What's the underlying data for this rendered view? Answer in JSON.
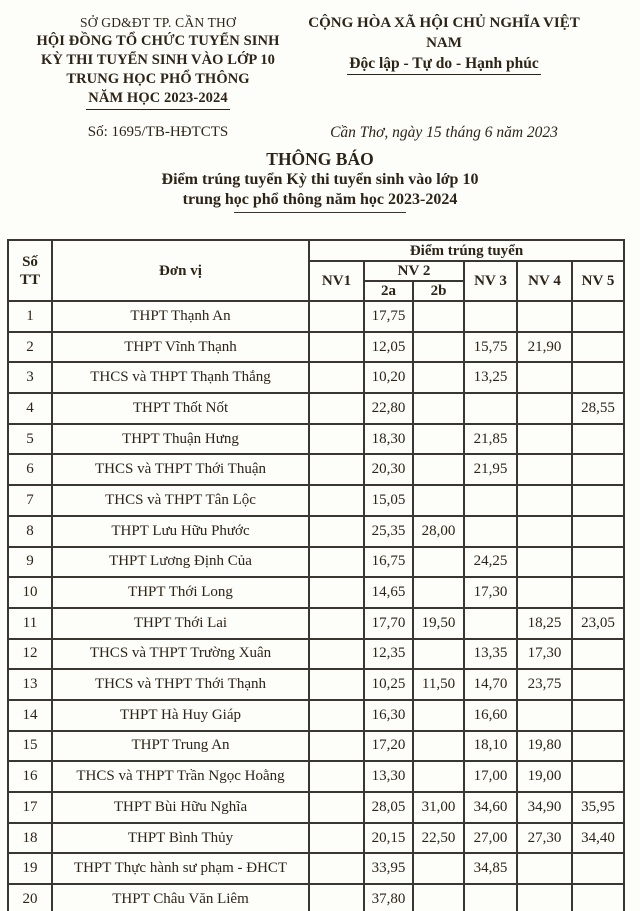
{
  "document": {
    "issuer_block": {
      "agency": "SỞ GD&ĐT TP. CẦN THƠ",
      "council_line1": "HỘI ĐỒNG TỔ CHỨC TUYỂN SINH",
      "council_line2": "KỲ THI TUYỂN SINH VÀO LỚP 10",
      "council_line3": "TRUNG HỌC PHỔ THÔNG",
      "council_line4": "NĂM HỌC 2023-2024"
    },
    "national_block": {
      "motto_line1": "CỘNG HÒA XÃ HỘI CHỦ NGHĨA VIỆT NAM",
      "motto_line2": "Độc lập - Tự do - Hạnh phúc"
    },
    "doc_number": "Số: 1695/TB-HĐTCTS",
    "place_date": "Cần Thơ, ngày 15 tháng 6 năm 2023",
    "title": "THÔNG BÁO",
    "subtitle_line1": "Điểm trúng tuyển Kỳ thi tuyển sinh vào lớp 10",
    "subtitle_line2": "trung học phổ thông năm học 2023-2024"
  },
  "colors": {
    "ink": "#2d2418",
    "table_border": "#3a3733",
    "background": "#fdfdfa"
  },
  "table": {
    "header": {
      "stt_line1": "Số",
      "stt_line2": "TT",
      "unit": "Đơn vị",
      "group_title": "Điểm trúng tuyển",
      "nv1": "NV1",
      "nv2": "NV 2",
      "nv2a": "2a",
      "nv2b": "2b",
      "nv3": "NV 3",
      "nv4": "NV 4",
      "nv5": "NV 5"
    },
    "rows": [
      {
        "stt": "1",
        "unit": "THPT Thạnh An",
        "nv1": "",
        "nv2a": "17,75",
        "nv2b": "",
        "nv3": "",
        "nv4": "",
        "nv5": ""
      },
      {
        "stt": "2",
        "unit": "THPT Vĩnh Thạnh",
        "nv1": "",
        "nv2a": "12,05",
        "nv2b": "",
        "nv3": "15,75",
        "nv4": "21,90",
        "nv5": ""
      },
      {
        "stt": "3",
        "unit": "THCS và THPT Thạnh Thắng",
        "nv1": "",
        "nv2a": "10,20",
        "nv2b": "",
        "nv3": "13,25",
        "nv4": "",
        "nv5": ""
      },
      {
        "stt": "4",
        "unit": "THPT Thốt Nốt",
        "nv1": "",
        "nv2a": "22,80",
        "nv2b": "",
        "nv3": "",
        "nv4": "",
        "nv5": "28,55"
      },
      {
        "stt": "5",
        "unit": "THPT Thuận Hưng",
        "nv1": "",
        "nv2a": "18,30",
        "nv2b": "",
        "nv3": "21,85",
        "nv4": "",
        "nv5": ""
      },
      {
        "stt": "6",
        "unit": "THCS và THPT Thới Thuận",
        "nv1": "",
        "nv2a": "20,30",
        "nv2b": "",
        "nv3": "21,95",
        "nv4": "",
        "nv5": ""
      },
      {
        "stt": "7",
        "unit": "THCS và THPT Tân Lộc",
        "nv1": "",
        "nv2a": "15,05",
        "nv2b": "",
        "nv3": "",
        "nv4": "",
        "nv5": ""
      },
      {
        "stt": "8",
        "unit": "THPT Lưu Hữu Phước",
        "nv1": "",
        "nv2a": "25,35",
        "nv2b": "28,00",
        "nv3": "",
        "nv4": "",
        "nv5": ""
      },
      {
        "stt": "9",
        "unit": "THPT Lương Định Của",
        "nv1": "",
        "nv2a": "16,75",
        "nv2b": "",
        "nv3": "24,25",
        "nv4": "",
        "nv5": ""
      },
      {
        "stt": "10",
        "unit": "THPT Thới Long",
        "nv1": "",
        "nv2a": "14,65",
        "nv2b": "",
        "nv3": "17,30",
        "nv4": "",
        "nv5": ""
      },
      {
        "stt": "11",
        "unit": "THPT Thới Lai",
        "nv1": "",
        "nv2a": "17,70",
        "nv2b": "19,50",
        "nv3": "",
        "nv4": "18,25",
        "nv5": "23,05"
      },
      {
        "stt": "12",
        "unit": "THCS và THPT Trường Xuân",
        "nv1": "",
        "nv2a": "12,35",
        "nv2b": "",
        "nv3": "13,35",
        "nv4": "17,30",
        "nv5": ""
      },
      {
        "stt": "13",
        "unit": "THCS và THPT Thới Thạnh",
        "nv1": "",
        "nv2a": "10,25",
        "nv2b": "11,50",
        "nv3": "14,70",
        "nv4": "23,75",
        "nv5": ""
      },
      {
        "stt": "14",
        "unit": "THPT Hà Huy Giáp",
        "nv1": "",
        "nv2a": "16,30",
        "nv2b": "",
        "nv3": "16,60",
        "nv4": "",
        "nv5": ""
      },
      {
        "stt": "15",
        "unit": "THPT Trung An",
        "nv1": "",
        "nv2a": "17,20",
        "nv2b": "",
        "nv3": "18,10",
        "nv4": "19,80",
        "nv5": ""
      },
      {
        "stt": "16",
        "unit": "THCS và THPT Trần Ngọc Hoằng",
        "nv1": "",
        "nv2a": "13,30",
        "nv2b": "",
        "nv3": "17,00",
        "nv4": "19,00",
        "nv5": ""
      },
      {
        "stt": "17",
        "unit": "THPT Bùi Hữu Nghĩa",
        "nv1": "",
        "nv2a": "28,05",
        "nv2b": "31,00",
        "nv3": "34,60",
        "nv4": "34,90",
        "nv5": "35,95"
      },
      {
        "stt": "18",
        "unit": "THPT Bình Thủy",
        "nv1": "",
        "nv2a": "20,15",
        "nv2b": "22,50",
        "nv3": "27,00",
        "nv4": "27,30",
        "nv5": "34,40"
      },
      {
        "stt": "19",
        "unit": "THPT Thực hành sư phạm - ĐHCT",
        "nv1": "",
        "nv2a": "33,95",
        "nv2b": "",
        "nv3": "34,85",
        "nv4": "",
        "nv5": ""
      },
      {
        "stt": "20",
        "unit": "THPT Châu Văn Liêm",
        "nv1": "",
        "nv2a": "37,80",
        "nv2b": "",
        "nv3": "",
        "nv4": "",
        "nv5": ""
      }
    ]
  }
}
